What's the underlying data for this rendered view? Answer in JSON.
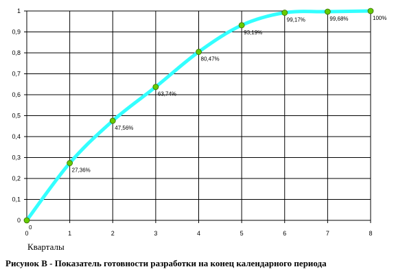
{
  "chart_data": {
    "type": "line",
    "x": [
      0,
      1,
      2,
      3,
      4,
      5,
      6,
      7,
      8
    ],
    "series": [
      {
        "values": [
          0,
          0.2736,
          0.4756,
          0.6374,
          0.8047,
          0.9319,
          0.9917,
          0.9968,
          1.0
        ],
        "point_labels": [
          "0",
          "27,36%",
          "47,56%",
          "63,74%",
          "80,47%",
          "93,19%",
          "99,17%",
          "99,68%",
          "100%"
        ]
      }
    ],
    "xlabel": "Кварталы",
    "ylabel": "",
    "xlim": [
      0,
      8
    ],
    "ylim": [
      0,
      1
    ],
    "x_ticks": [
      "0",
      "1",
      "2",
      "3",
      "4",
      "5",
      "6",
      "7",
      "8"
    ],
    "y_ticks": [
      "0",
      "0,1",
      "0,2",
      "0,3",
      "0,4",
      "0,5",
      "0,6",
      "0,7",
      "0,8",
      "0,9",
      "1"
    ],
    "grid": true,
    "line_color": "#33ffff",
    "marker_color": "#66cc00",
    "caption": "Рисунок В - Показатель готовности разработки на конец календарного периода"
  }
}
